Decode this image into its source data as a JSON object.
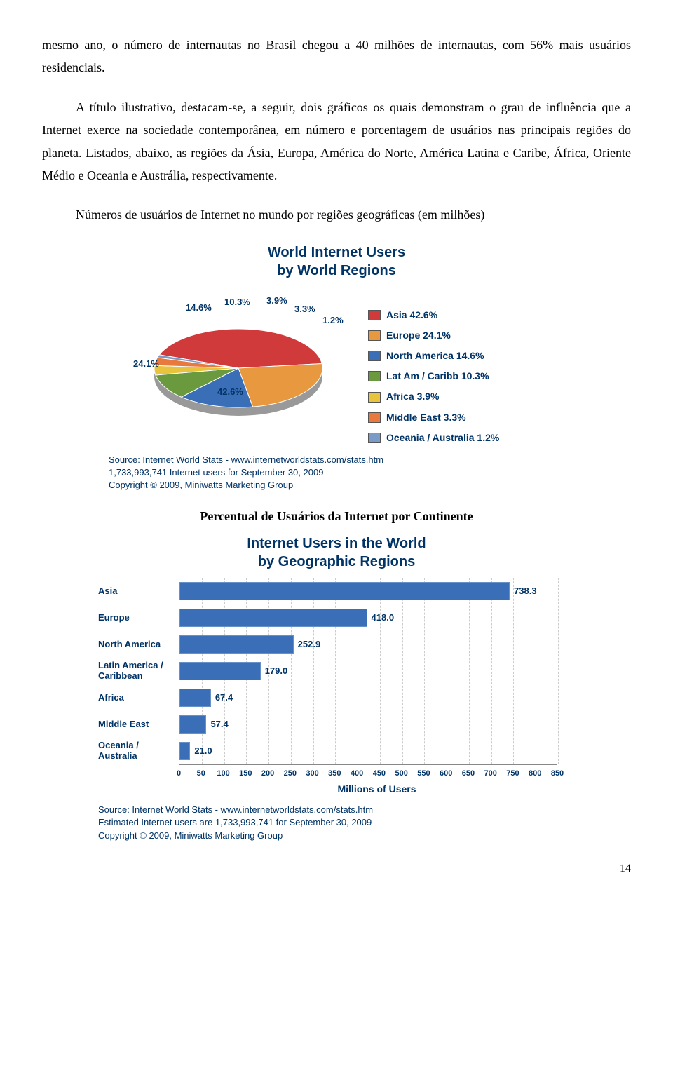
{
  "para1": "mesmo ano, o número de internautas no Brasil chegou a 40 milhões de internautas, com 56% mais usuários residenciais.",
  "para2": "A título ilustrativo, destacam-se, a seguir, dois gráficos os quais demonstram o grau de influência que a Internet exerce na sociedade contemporânea, em número e porcentagem de usuários nas principais regiões do planeta. Listados, abaixo, as regiões da Ásia, Europa, América do Norte, América Latina e Caribe, África, Oriente Médio e Oceania e Austrália, respectivamente.",
  "caption1": "Números de usuários de Internet no mundo por regiões geográficas (em milhões)",
  "caption2": "Percentual de Usuários da Internet por Continente",
  "page_number": "14",
  "pie": {
    "title_line1": "World Internet Users",
    "title_line2": "by World Regions",
    "slices": [
      {
        "label": "Asia",
        "pct": 42.6,
        "color": "#d13a3a",
        "legend": "Asia  42.6%"
      },
      {
        "label": "Europe",
        "pct": 24.1,
        "color": "#e8983e",
        "legend": "Europe  24.1%"
      },
      {
        "label": "North America",
        "pct": 14.6,
        "color": "#3a6fb7",
        "legend": "North America  14.6%"
      },
      {
        "label": "Lat Am / Caribb",
        "pct": 10.3,
        "color": "#6b9a3e",
        "legend": "Lat Am / Caribb 10.3%"
      },
      {
        "label": "Africa",
        "pct": 3.9,
        "color": "#e8c33e",
        "legend": "Africa  3.9%"
      },
      {
        "label": "Middle East",
        "pct": 3.3,
        "color": "#e87a3e",
        "legend": "Middle East  3.3%"
      },
      {
        "label": "Oceania/Australia",
        "pct": 1.2,
        "color": "#7a9ac8",
        "legend": "Oceania / Australia  1.2%"
      }
    ],
    "callouts": {
      "asia": "42.6%",
      "europe": "24.1%",
      "na": "14.6%",
      "lac": "10.3%",
      "africa": "3.9%",
      "me": "3.3%",
      "oc": "1.2%"
    },
    "source1": "Source: Internet World Stats -  www.internetworldstats.com/stats.htm",
    "source2": "1,733,993,741 Internet users for September 30, 2009",
    "source3": "Copyright © 2009, Miniwatts Marketing Group"
  },
  "bar": {
    "title_line1": "Internet Users in the World",
    "title_line2": "by Geographic Regions",
    "xmax": 850,
    "ticks": [
      0,
      50,
      100,
      150,
      200,
      250,
      300,
      350,
      400,
      450,
      500,
      550,
      600,
      650,
      700,
      750,
      800,
      850
    ],
    "xlabel": "Millions of Users",
    "bar_color": "#3a6fb7",
    "series": [
      {
        "label": "Asia",
        "value": 738.3
      },
      {
        "label": "Europe",
        "value": 418.0
      },
      {
        "label": "North America",
        "value": 252.9
      },
      {
        "label": "Latin America / Caribbean",
        "value": 179.0
      },
      {
        "label": "Africa",
        "value": 67.4
      },
      {
        "label": "Middle East",
        "value": 57.4
      },
      {
        "label": "Oceania / Australia",
        "value": 21.0
      }
    ],
    "source1": "Source: Internet World Stats - www.internetworldstats.com/stats.htm",
    "source2": "Estimated Internet users are 1,733,993,741 for September 30, 2009",
    "source3": "Copyright © 2009, Miniwatts Marketing Group"
  }
}
